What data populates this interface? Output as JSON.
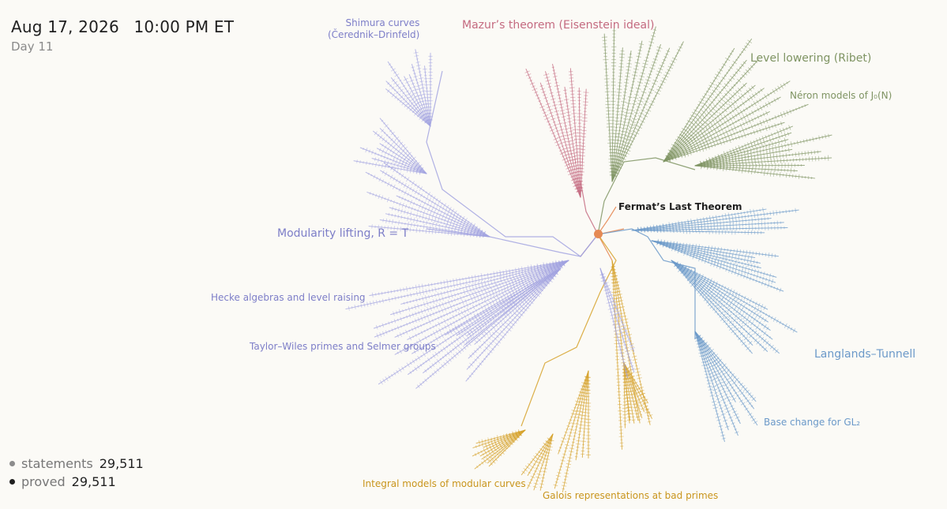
{
  "header": {
    "date": "Aug 17, 2026",
    "time": "10:00 PM ET",
    "day": "Day 11"
  },
  "counters": {
    "statements_label": "statements",
    "statements_value": "29,511",
    "proved_label": "proved",
    "proved_value": "29,511",
    "statements_color": "#8c8c8c",
    "proved_color": "#1f1f1f"
  },
  "root": {
    "label": "Fermat’s Last Theorem",
    "color": "#e58a55"
  },
  "branches": [
    {
      "id": "mazur",
      "color": "#c46a80",
      "label_lines": [
        "Mazur’s theorem (Eisenstein ideal)"
      ]
    },
    {
      "id": "ribet",
      "color": "#7f9463",
      "label_lines": [
        "Level lowering (Ribet)"
      ]
    },
    {
      "id": "neron",
      "color": "#7f9463",
      "label_lines": [
        "Néron models of J₀(N)"
      ]
    },
    {
      "id": "langlands",
      "color": "#6b99c9",
      "label_lines": [
        "Langlands–Tunnell"
      ]
    },
    {
      "id": "basechange",
      "color": "#6b99c9",
      "label_lines": [
        "Base change for GL₂"
      ]
    },
    {
      "id": "galois",
      "color": "#d6a129",
      "label_lines": [
        "Galois representations at bad primes"
      ]
    },
    {
      "id": "integral",
      "color": "#d6a129",
      "label_lines": [
        "Integral models of modular curves"
      ]
    },
    {
      "id": "taylorwiles",
      "color": "#a2a3e0",
      "label_lines": [
        "Taylor–Wiles primes and Selmer groups"
      ]
    },
    {
      "id": "hecke",
      "color": "#a2a3e0",
      "label_lines": [
        "Hecke algebras and level raising"
      ]
    },
    {
      "id": "modularity",
      "color": "#8f90d8",
      "label_lines": [
        "Modularity lifting, R = T"
      ]
    },
    {
      "id": "shimura",
      "color": "#a2a3e0",
      "label_lines": [
        "Shimura curves",
        "(Čerednik–Drinfeld)"
      ]
    }
  ]
}
